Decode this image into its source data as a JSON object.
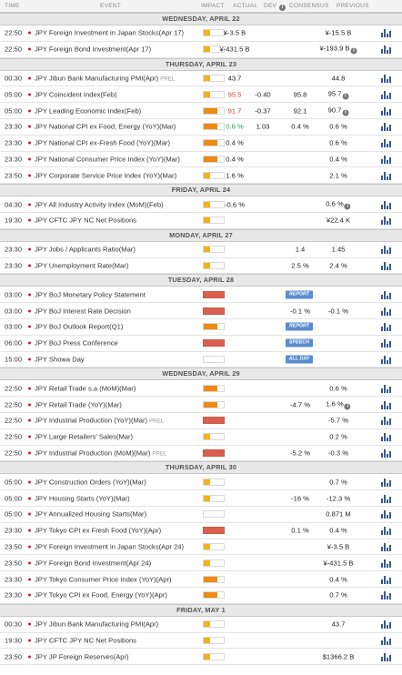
{
  "header": {
    "time": "TIME",
    "event": "EVENT",
    "impact": "IMPACT",
    "actual": "ACTUAL",
    "dev": "DEV",
    "consensus": "CONSENSUS",
    "previous": "PREVIOUS"
  },
  "days": [
    {
      "label": "WEDNESDAY, APRIL 22",
      "events": [
        {
          "time": "22:50",
          "title": "JPY Foreign Investment in Japan Stocks(Apr 17)",
          "impact": "low",
          "actual": "¥-3.5 B",
          "actual_color": "",
          "dev": "",
          "consensus": "",
          "previous": "¥-15.5 B",
          "revised": false,
          "tag": ""
        },
        {
          "time": "22:50",
          "title": "JPY Foreign Bond Investment(Apr 17)",
          "impact": "low",
          "actual": "¥-431.5 B",
          "actual_color": "",
          "dev": "",
          "consensus": "",
          "previous": "¥-193.9 B",
          "revised": true,
          "tag": ""
        }
      ]
    },
    {
      "label": "THURSDAY, APRIL 23",
      "events": [
        {
          "time": "00:30",
          "title": "JPY Jibun Bank Manufacturing PMI(Apr)",
          "prel": "PREL",
          "impact": "low",
          "actual": "43.7",
          "actual_color": "",
          "dev": "",
          "consensus": "",
          "previous": "44.8",
          "revised": false,
          "tag": ""
        },
        {
          "time": "05:00",
          "title": "JPY Coincident Index(Feb)",
          "impact": "low",
          "actual": "95.5",
          "actual_color": "red",
          "dev": "-0.40",
          "consensus": "95.8",
          "previous": "95.7",
          "revised": true,
          "tag": ""
        },
        {
          "time": "05:00",
          "title": "JPY Leading Economic Index(Feb)",
          "impact": "med",
          "actual": "91.7",
          "actual_color": "red",
          "dev": "-0.37",
          "consensus": "92.1",
          "previous": "90.7",
          "revised": true,
          "tag": ""
        },
        {
          "time": "23:30",
          "title": "JPY National CPI ex Food, Energy (YoY)(Mar)",
          "impact": "med",
          "actual": "0.6 %",
          "actual_color": "green",
          "dev": "1.03",
          "consensus": "0.4 %",
          "previous": "0.6 %",
          "revised": false,
          "tag": ""
        },
        {
          "time": "23:30",
          "title": "JPY National CPI ex-Fresh Food (YoY)(Mar)",
          "impact": "med",
          "actual": "0.4 %",
          "actual_color": "",
          "dev": "",
          "consensus": "",
          "previous": "0.6 %",
          "revised": false,
          "tag": ""
        },
        {
          "time": "23:30",
          "title": "JPY National Consumer Price Index (YoY)(Mar)",
          "impact": "med",
          "actual": "0.4 %",
          "actual_color": "",
          "dev": "",
          "consensus": "",
          "previous": "0.4 %",
          "revised": false,
          "tag": ""
        },
        {
          "time": "23:50",
          "title": "JPY Corporate Service Price Index (YoY)(Mar)",
          "impact": "low",
          "actual": "1.6 %",
          "actual_color": "",
          "dev": "",
          "consensus": "",
          "previous": "2.1 %",
          "revised": false,
          "tag": ""
        }
      ]
    },
    {
      "label": "FRIDAY, APRIL 24",
      "events": [
        {
          "time": "04:30",
          "title": "JPY All Industry Activity Index (MoM)(Feb)",
          "impact": "low",
          "actual": "-0.6 %",
          "actual_color": "",
          "dev": "",
          "consensus": "",
          "previous": "0.6 %",
          "revised": true,
          "tag": ""
        },
        {
          "time": "19:30",
          "title": "JPY CFTC JPY NC Net Positions",
          "impact": "low",
          "actual": "",
          "actual_color": "",
          "dev": "",
          "consensus": "",
          "previous": "¥22.4 K",
          "revised": false,
          "tag": ""
        }
      ]
    },
    {
      "label": "MONDAY, APRIL 27",
      "events": [
        {
          "time": "23:30",
          "title": "JPY Jobs / Applicants Ratio(Mar)",
          "impact": "low",
          "actual": "",
          "actual_color": "",
          "dev": "",
          "consensus": "1.4",
          "previous": "1.45",
          "revised": false,
          "tag": ""
        },
        {
          "time": "23:30",
          "title": "JPY Unemployment Rate(Mar)",
          "impact": "low",
          "actual": "",
          "actual_color": "",
          "dev": "",
          "consensus": "2.5 %",
          "previous": "2.4 %",
          "revised": false,
          "tag": ""
        }
      ]
    },
    {
      "label": "TUESDAY, APRIL 28",
      "events": [
        {
          "time": "03:00",
          "title": "JPY BoJ Monetary Policy Statement",
          "impact": "high",
          "actual": "",
          "actual_color": "",
          "dev": "",
          "consensus": "",
          "previous": "",
          "revised": false,
          "tag": "REPORT"
        },
        {
          "time": "03:00",
          "title": "JPY BoJ Interest Rate Decision",
          "impact": "high",
          "actual": "",
          "actual_color": "",
          "dev": "",
          "consensus": "-0.1 %",
          "previous": "-0.1 %",
          "revised": false,
          "tag": ""
        },
        {
          "time": "03:00",
          "title": "JPY BoJ Outlook Report(Q1)",
          "impact": "med",
          "actual": "",
          "actual_color": "",
          "dev": "",
          "consensus": "",
          "previous": "",
          "revised": false,
          "tag": "REPORT"
        },
        {
          "time": "06:00",
          "title": "JPY BoJ Press Conference",
          "impact": "high",
          "actual": "",
          "actual_color": "",
          "dev": "",
          "consensus": "",
          "previous": "",
          "revised": false,
          "tag": "SPEECH"
        },
        {
          "time": "15:00",
          "title": "JPY Showa Day",
          "impact": "holiday",
          "actual": "",
          "actual_color": "",
          "dev": "",
          "consensus": "",
          "previous": "",
          "revised": false,
          "tag": "ALL DAY"
        }
      ]
    },
    {
      "label": "WEDNESDAY, APRIL 29",
      "events": [
        {
          "time": "22:50",
          "title": "JPY Retail Trade s.a (MoM)(Mar)",
          "impact": "med",
          "actual": "",
          "actual_color": "",
          "dev": "",
          "consensus": "",
          "previous": "0.6 %",
          "revised": false,
          "tag": ""
        },
        {
          "time": "22:50",
          "title": "JPY Retail Trade (YoY)(Mar)",
          "impact": "med",
          "actual": "",
          "actual_color": "",
          "dev": "",
          "consensus": "-4.7 %",
          "previous": "1.6 %",
          "revised": true,
          "tag": ""
        },
        {
          "time": "22:50",
          "title": "JPY Industrial Production (YoY)(Mar)",
          "prel": "PREL",
          "impact": "high",
          "actual": "",
          "actual_color": "",
          "dev": "",
          "consensus": "",
          "previous": "-5.7 %",
          "revised": false,
          "tag": ""
        },
        {
          "time": "22:50",
          "title": "JPY Large Retailers' Sales(Mar)",
          "impact": "low",
          "actual": "",
          "actual_color": "",
          "dev": "",
          "consensus": "",
          "previous": "0.2 %",
          "revised": false,
          "tag": ""
        },
        {
          "time": "22:50",
          "title": "JPY Industrial Production (MoM)(Mar)",
          "prel": "PREL",
          "impact": "high",
          "actual": "",
          "actual_color": "",
          "dev": "",
          "consensus": "-5.2 %",
          "previous": "-0.3 %",
          "revised": false,
          "tag": ""
        }
      ]
    },
    {
      "label": "THURSDAY, APRIL 30",
      "events": [
        {
          "time": "05:00",
          "title": "JPY Construction Orders (YoY)(Mar)",
          "impact": "low",
          "actual": "",
          "actual_color": "",
          "dev": "",
          "consensus": "",
          "previous": "0.7 %",
          "revised": false,
          "tag": ""
        },
        {
          "time": "05:00",
          "title": "JPY Housing Starts (YoY)(Mar)",
          "impact": "low",
          "actual": "",
          "actual_color": "",
          "dev": "",
          "consensus": "-16 %",
          "previous": "-12.3 %",
          "revised": false,
          "tag": ""
        },
        {
          "time": "05:00",
          "title": "JPY Annualized Housing Starts(Mar)",
          "impact": "holiday",
          "actual": "",
          "actual_color": "",
          "dev": "",
          "consensus": "",
          "previous": "0.871 M",
          "revised": false,
          "tag": ""
        },
        {
          "time": "23:30",
          "title": "JPY Tokyo CPI ex Fresh Food (YoY)(Apr)",
          "impact": "high",
          "actual": "",
          "actual_color": "",
          "dev": "",
          "consensus": "0.1 %",
          "previous": "0.4 %",
          "revised": false,
          "tag": ""
        },
        {
          "time": "23:50",
          "title": "JPY Foreign Investment in Japan Stocks(Apr 24)",
          "impact": "low",
          "actual": "",
          "actual_color": "",
          "dev": "",
          "consensus": "",
          "previous": "¥-3.5 B",
          "revised": false,
          "tag": ""
        },
        {
          "time": "23:50",
          "title": "JPY Foreign Bond Investment(Apr 24)",
          "impact": "low",
          "actual": "",
          "actual_color": "",
          "dev": "",
          "consensus": "",
          "previous": "¥-431.5 B",
          "revised": false,
          "tag": ""
        },
        {
          "time": "23:30",
          "title": "JPY Tokyo Consumer Price Index (YoY)(Apr)",
          "impact": "med",
          "actual": "",
          "actual_color": "",
          "dev": "",
          "consensus": "",
          "previous": "0.4 %",
          "revised": false,
          "tag": ""
        },
        {
          "time": "23:30",
          "title": "JPY Tokyo CPI ex Food, Energy (YoY)(Apr)",
          "impact": "med",
          "actual": "",
          "actual_color": "",
          "dev": "",
          "consensus": "",
          "previous": "0.7 %",
          "revised": false,
          "tag": ""
        }
      ]
    },
    {
      "label": "FRIDAY, MAY 1",
      "events": [
        {
          "time": "00:30",
          "title": "JPY Jibun Bank Manufacturing PMI(Apr)",
          "impact": "low",
          "actual": "",
          "actual_color": "",
          "dev": "",
          "consensus": "",
          "previous": "43.7",
          "revised": false,
          "tag": ""
        },
        {
          "time": "19:30",
          "title": "JPY CFTC JPY NC Net Positions",
          "impact": "low",
          "actual": "",
          "actual_color": "",
          "dev": "",
          "consensus": "",
          "previous": "",
          "revised": false,
          "tag": ""
        },
        {
          "time": "23:50",
          "title": "JPY JP Foreign Reserves(Apr)",
          "impact": "low",
          "actual": "",
          "actual_color": "",
          "dev": "",
          "consensus": "",
          "previous": "$1366.2 B",
          "revised": false,
          "tag": ""
        }
      ]
    }
  ]
}
